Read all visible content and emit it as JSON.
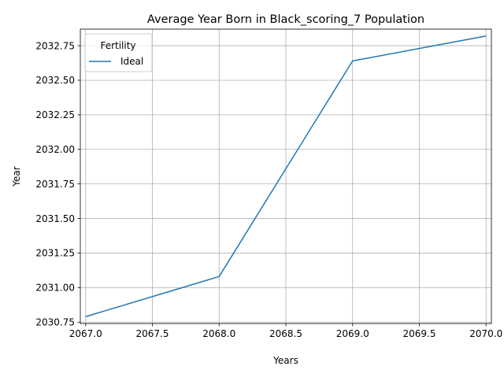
{
  "chart_data": {
    "type": "line",
    "title": "Average Year Born in Black_scoring_7 Population",
    "xlabel": "Years",
    "ylabel": "Year",
    "x": [
      2067.0,
      2068.0,
      2069.0,
      2070.0
    ],
    "series": [
      {
        "name": "Ideal",
        "values": [
          2030.79,
          2031.08,
          2032.64,
          2032.82
        ],
        "color": "#1f77b4"
      }
    ],
    "xlim": [
      2066.96,
      2070.04
    ],
    "ylim": [
      2030.74,
      2032.87
    ],
    "x_ticks": [
      "2067.0",
      "2067.5",
      "2068.0",
      "2068.5",
      "2069.0",
      "2069.5",
      "2070.0"
    ],
    "y_ticks": [
      "2030.75",
      "2031.00",
      "2031.25",
      "2031.50",
      "2031.75",
      "2032.00",
      "2032.25",
      "2032.50",
      "2032.75"
    ],
    "grid": true,
    "legend": {
      "title": "Fertility",
      "placement": "top-left"
    }
  }
}
